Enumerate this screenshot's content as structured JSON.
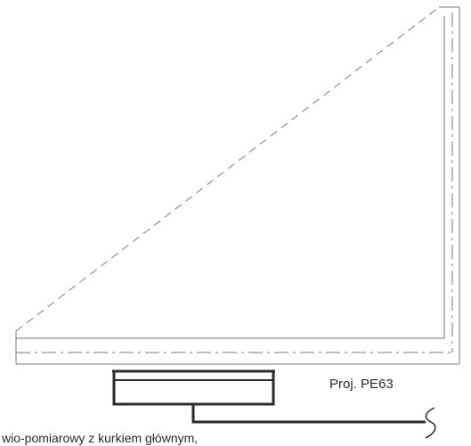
{
  "drawing": {
    "pipe_label": "Proj. PE63",
    "meter_label": "wio-pomiarowy z kurkiem głównym,"
  },
  "colors": {
    "thin_line": "#7a7a7a",
    "thick_line": "#2b2b2b",
    "text": "#2a2a2a"
  }
}
